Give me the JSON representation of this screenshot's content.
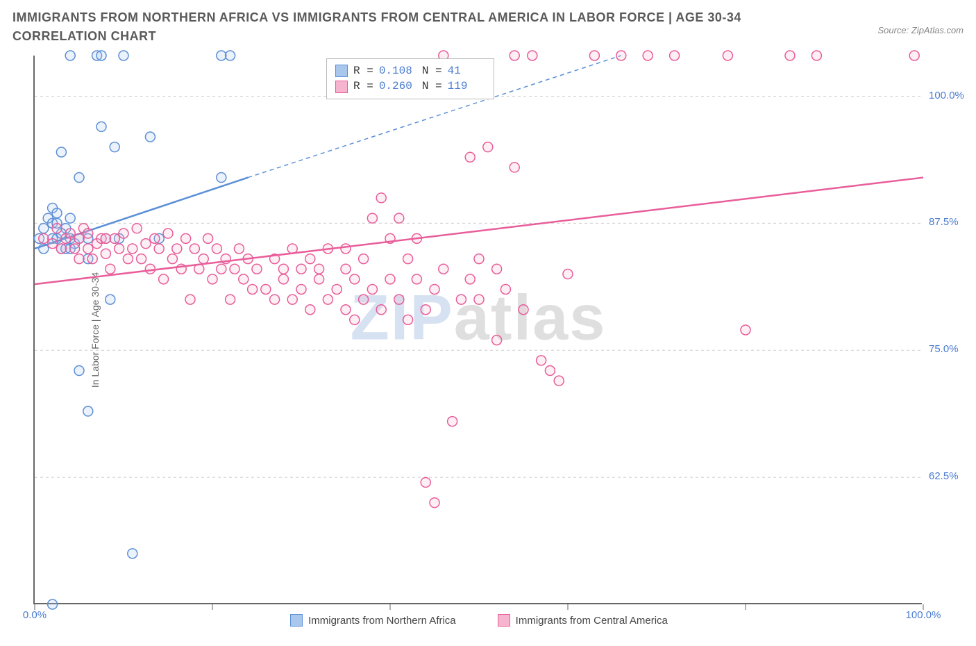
{
  "title": "IMMIGRANTS FROM NORTHERN AFRICA VS IMMIGRANTS FROM CENTRAL AMERICA IN LABOR FORCE | AGE 30-34 CORRELATION CHART",
  "source": "Source: ZipAtlas.com",
  "y_axis_label": "In Labor Force | Age 30-34",
  "watermark_a": "ZIP",
  "watermark_b": "atlas",
  "chart": {
    "type": "scatter",
    "background_color": "#ffffff",
    "grid_color": "#cccccc",
    "axis_color": "#666666",
    "xlim": [
      0,
      100
    ],
    "ylim": [
      50,
      104
    ],
    "x_ticks": [
      0,
      20,
      40,
      60,
      80,
      100
    ],
    "x_tick_labels": [
      "0.0%",
      "",
      "",
      "",
      "",
      "100.0%"
    ],
    "y_grid": [
      62.5,
      75.0,
      87.5,
      100.0
    ],
    "y_tick_labels": [
      "62.5%",
      "75.0%",
      "87.5%",
      "100.0%"
    ],
    "marker_radius": 7,
    "marker_stroke_width": 1.5,
    "marker_fill_opacity": 0.22,
    "line_width": 2.5,
    "series": [
      {
        "key": "northern_africa",
        "label": "Immigrants from Northern Africa",
        "color_stroke": "#5b8fd6",
        "color_fill": "#a9c6ec",
        "R": "0.108",
        "N": "41",
        "trend": {
          "x1": 0,
          "y1": 85.0,
          "x2": 24,
          "y2": 92.0,
          "x3": 66,
          "y3": 104.0
        },
        "points": [
          [
            0.5,
            86
          ],
          [
            1,
            87
          ],
          [
            1,
            85
          ],
          [
            1.5,
            88
          ],
          [
            2,
            86
          ],
          [
            2,
            87.5
          ],
          [
            2,
            89
          ],
          [
            2.5,
            86
          ],
          [
            2.5,
            88.5
          ],
          [
            3,
            85
          ],
          [
            3,
            94.5
          ],
          [
            3.5,
            85
          ],
          [
            3.5,
            87
          ],
          [
            4,
            86
          ],
          [
            4,
            88
          ],
          [
            4,
            104
          ],
          [
            4.5,
            85.5
          ],
          [
            5,
            86
          ],
          [
            5,
            73
          ],
          [
            5,
            92
          ],
          [
            6,
            86
          ],
          [
            6,
            84
          ],
          [
            6,
            69
          ],
          [
            7,
            104
          ],
          [
            7.5,
            104
          ],
          [
            7.5,
            97
          ],
          [
            8,
            86
          ],
          [
            8.5,
            80
          ],
          [
            9,
            95
          ],
          [
            9.5,
            86
          ],
          [
            10,
            104
          ],
          [
            11,
            55
          ],
          [
            13,
            96
          ],
          [
            14,
            86
          ],
          [
            21,
            104
          ],
          [
            21,
            92
          ],
          [
            22,
            104
          ],
          [
            2,
            50
          ],
          [
            4,
            85
          ],
          [
            3,
            86.5
          ],
          [
            2.5,
            87.5
          ]
        ]
      },
      {
        "key": "central_america",
        "label": "Immigrants from Central America",
        "color_stroke": "#e85d9a",
        "color_fill": "#f6b4cf",
        "R": "0.260",
        "N": "119",
        "trend": {
          "x1": 0,
          "y1": 81.5,
          "x2": 100,
          "y2": 92.0
        },
        "points": [
          [
            1,
            86
          ],
          [
            2,
            85.5
          ],
          [
            2.5,
            87
          ],
          [
            3,
            85
          ],
          [
            3.5,
            86
          ],
          [
            4,
            86.5
          ],
          [
            4.5,
            85
          ],
          [
            5,
            86
          ],
          [
            5,
            84
          ],
          [
            5.5,
            87
          ],
          [
            6,
            85
          ],
          [
            6,
            86.5
          ],
          [
            6.5,
            84
          ],
          [
            7,
            85.5
          ],
          [
            7.5,
            86
          ],
          [
            8,
            84.5
          ],
          [
            8,
            86
          ],
          [
            8.5,
            83
          ],
          [
            9,
            86
          ],
          [
            9.5,
            85
          ],
          [
            10,
            86.5
          ],
          [
            10.5,
            84
          ],
          [
            11,
            85
          ],
          [
            11.5,
            87
          ],
          [
            12,
            84
          ],
          [
            12.5,
            85.5
          ],
          [
            13,
            83
          ],
          [
            13.5,
            86
          ],
          [
            14,
            85
          ],
          [
            14.5,
            82
          ],
          [
            15,
            86.5
          ],
          [
            15.5,
            84
          ],
          [
            16,
            85
          ],
          [
            16.5,
            83
          ],
          [
            17,
            86
          ],
          [
            17.5,
            80
          ],
          [
            18,
            85
          ],
          [
            18.5,
            83
          ],
          [
            19,
            84
          ],
          [
            19.5,
            86
          ],
          [
            20,
            82
          ],
          [
            20.5,
            85
          ],
          [
            21,
            83
          ],
          [
            21.5,
            84
          ],
          [
            22,
            80
          ],
          [
            22.5,
            83
          ],
          [
            23,
            85
          ],
          [
            23.5,
            82
          ],
          [
            24,
            84
          ],
          [
            24.5,
            81
          ],
          [
            25,
            83
          ],
          [
            26,
            81
          ],
          [
            27,
            84
          ],
          [
            27,
            80
          ],
          [
            28,
            83
          ],
          [
            28,
            82
          ],
          [
            29,
            85
          ],
          [
            29,
            80
          ],
          [
            30,
            83
          ],
          [
            30,
            81
          ],
          [
            31,
            84
          ],
          [
            31,
            79
          ],
          [
            32,
            82
          ],
          [
            32,
            83
          ],
          [
            33,
            85
          ],
          [
            33,
            80
          ],
          [
            34,
            81
          ],
          [
            35,
            83
          ],
          [
            35,
            79
          ],
          [
            36,
            82
          ],
          [
            37,
            80
          ],
          [
            37,
            84
          ],
          [
            38,
            81
          ],
          [
            39,
            79
          ],
          [
            39,
            90
          ],
          [
            40,
            82
          ],
          [
            40,
            86
          ],
          [
            41,
            80
          ],
          [
            42,
            78
          ],
          [
            42,
            84
          ],
          [
            43,
            82
          ],
          [
            44,
            79
          ],
          [
            44,
            62
          ],
          [
            45,
            81
          ],
          [
            46,
            83
          ],
          [
            46,
            104
          ],
          [
            47,
            68
          ],
          [
            48,
            80
          ],
          [
            49,
            94
          ],
          [
            49,
            82
          ],
          [
            50,
            84
          ],
          [
            50,
            80
          ],
          [
            51,
            95
          ],
          [
            52,
            83
          ],
          [
            52,
            76
          ],
          [
            53,
            81
          ],
          [
            54,
            93
          ],
          [
            54,
            104
          ],
          [
            55,
            79
          ],
          [
            56,
            104
          ],
          [
            57,
            74
          ],
          [
            58,
            73
          ],
          [
            59,
            72
          ],
          [
            60,
            82.5
          ],
          [
            63,
            104
          ],
          [
            66,
            104
          ],
          [
            69,
            104
          ],
          [
            72,
            104
          ],
          [
            78,
            104
          ],
          [
            80,
            77
          ],
          [
            85,
            104
          ],
          [
            88,
            104
          ],
          [
            99,
            104
          ],
          [
            45,
            60
          ],
          [
            38,
            88
          ],
          [
            41,
            88
          ],
          [
            43,
            86
          ],
          [
            35,
            85
          ],
          [
            36,
            78
          ]
        ]
      }
    ]
  },
  "stats_labels": {
    "R": "R =",
    "N": "N ="
  },
  "label_fontsize": 14,
  "tick_fontsize": 15,
  "title_fontsize": 18
}
